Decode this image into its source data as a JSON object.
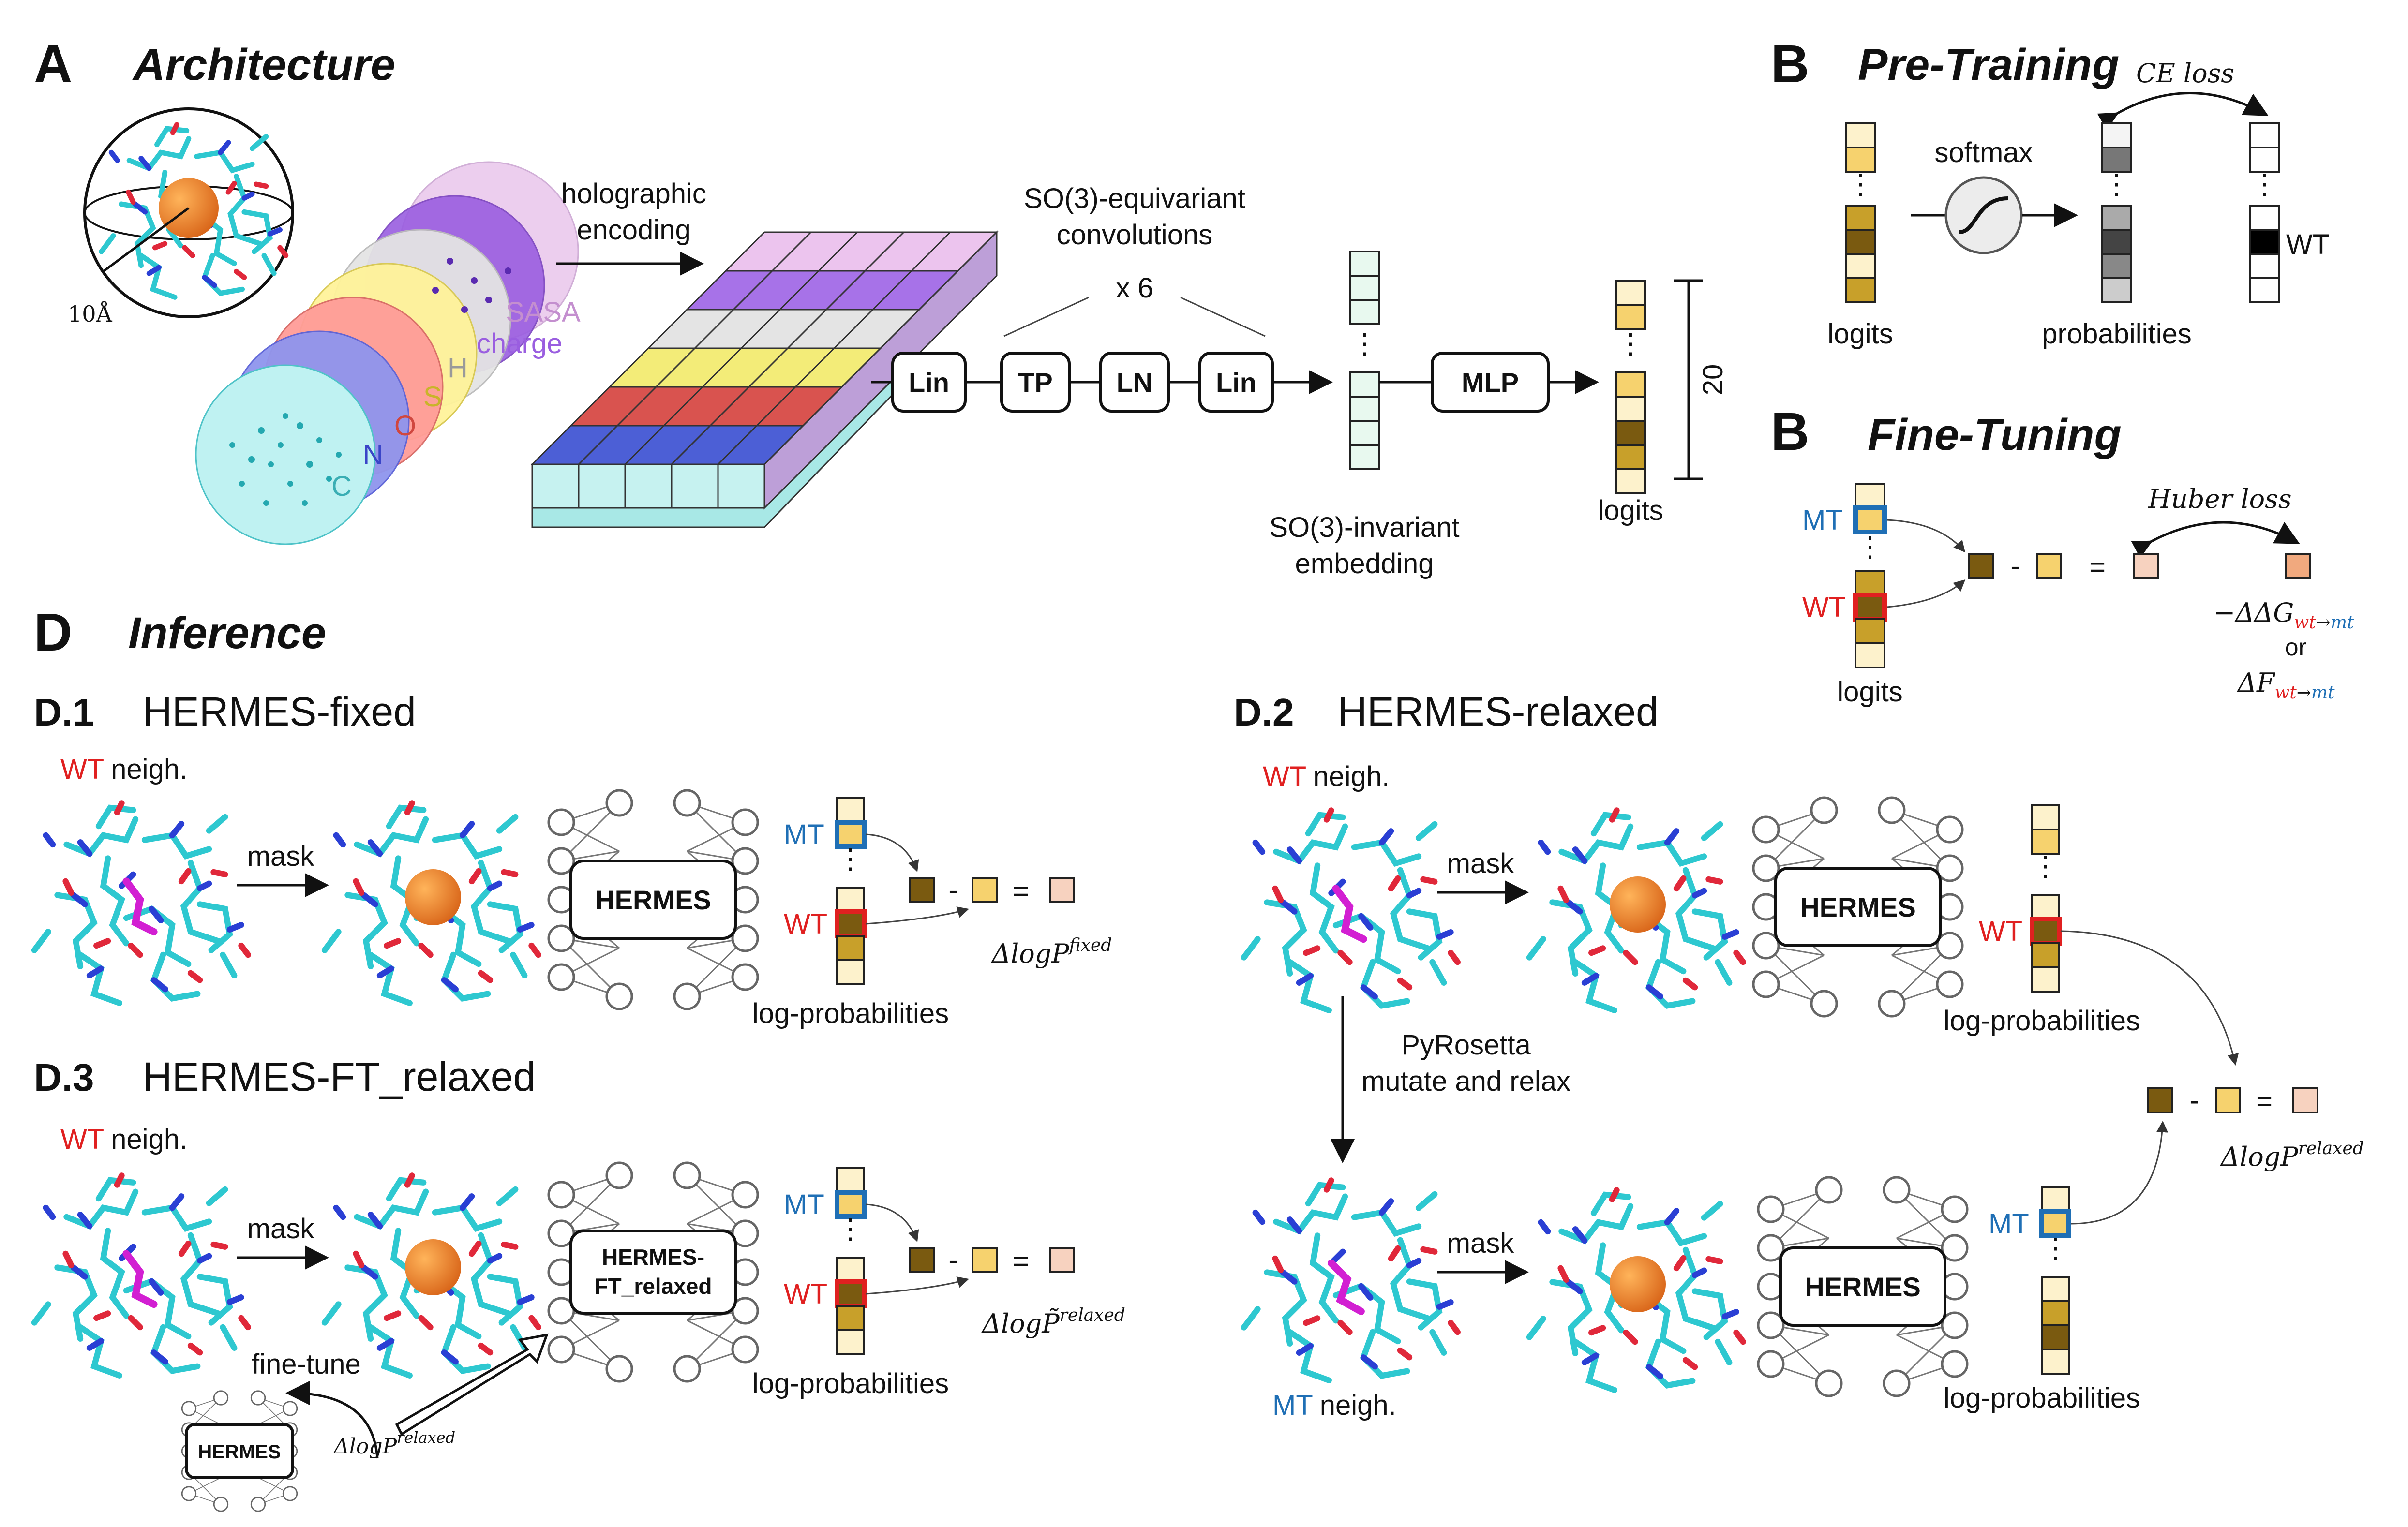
{
  "panels": {
    "a": {
      "letter": "A",
      "title": "Architecture",
      "radius": "10Å",
      "channels": [
        "SASA",
        "charge",
        "H",
        "S",
        "O",
        "N",
        "C"
      ],
      "encoding": [
        "holographic",
        "encoding"
      ],
      "conv": [
        "SO(3)-equivariant",
        "convolutions"
      ],
      "repeat": "x 6",
      "blocks": [
        "Lin",
        "TP",
        "LN",
        "Lin",
        "MLP"
      ],
      "embedding": [
        "SO(3)-invariant",
        "embedding"
      ],
      "logit_count": "20",
      "logits": "logits"
    },
    "b_pre": {
      "letter": "B",
      "title": "Pre-Training",
      "loss": "CE loss",
      "logits": "logits",
      "softmax": "softmax",
      "probabilities": "probabilities",
      "wt": "WT"
    },
    "b_ft": {
      "letter": "B",
      "title": "Fine-Tuning",
      "loss": "Huber loss",
      "mt": "MT",
      "wt": "WT",
      "logits": "logits",
      "ddg_prefix": "−ΔΔG",
      "df_prefix": "ΔF",
      "wt_sub": "wt",
      "mt_sub": "mt",
      "arrow": "→",
      "or": "or"
    },
    "d": {
      "letter": "D",
      "title": "Inference",
      "labels": {
        "wt": "WT",
        "mt": "MT",
        "neigh": "neigh.",
        "mask": "mask",
        "logprob": "log-probabilities",
        "pyrosetta": [
          "PyRosetta",
          "mutate and relax"
        ],
        "finetune": "fine-tune"
      },
      "models": {
        "hermes": "HERMES",
        "hermes_ft_line1": "HERMES-",
        "hermes_ft_line2": "FT_relaxed"
      },
      "delta_prefix": "ΔlogP",
      "delta_prefix_tilde": "ΔlogP̃",
      "d1": {
        "code": "D.1",
        "title": "HERMES-fixed",
        "superscript": "fixed"
      },
      "d2": {
        "code": "D.2",
        "title": "HERMES-relaxed",
        "superscript": "relaxed"
      },
      "d3": {
        "code": "D.3",
        "title": "HERMES-FT_relaxed"
      }
    }
  }
}
